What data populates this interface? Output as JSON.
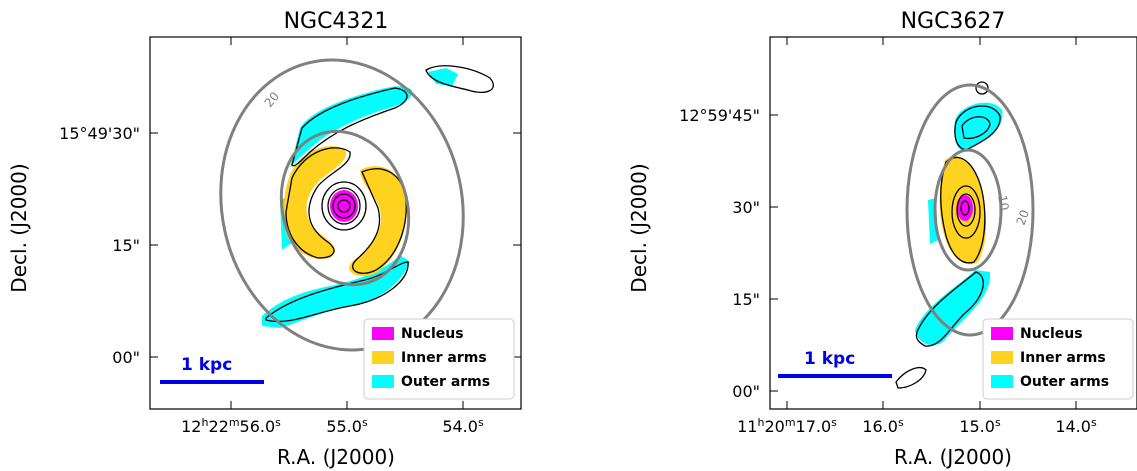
{
  "colors": {
    "nucleus": "#ff00ff",
    "inner_arms": "#ffd21f",
    "outer_arms": "#00ffff",
    "ellipse": "#808080",
    "scalebar": "#0000e6"
  },
  "panels": [
    {
      "title": "NGC4321",
      "xlabel": "R.A. (J2000)",
      "ylabel": "Decl. (J2000)",
      "yticks": [
        "15°49'30\"",
        "15\"",
        "00\""
      ],
      "xticks": [
        {
          "main": "12",
          "u1": "h",
          "m": "22",
          "u2": "m",
          "s": "56.0",
          "u3": "s"
        },
        {
          "s": "55.0",
          "u3": "s"
        },
        {
          "s": "54.0",
          "u3": "s"
        }
      ],
      "contour_label": "20",
      "scalebar": "1 kpc",
      "legend": [
        "Nucleus",
        "Inner arms",
        "Outer arms"
      ]
    },
    {
      "title": "NGC3627",
      "xlabel": "R.A. (J2000)",
      "ylabel": "Decl. (J2000)",
      "yticks": [
        "12°59'45\"",
        "30\"",
        "15\"",
        "00\""
      ],
      "xticks": [
        {
          "main": "11",
          "u1": "h",
          "m": "20",
          "u2": "m",
          "s": "17.0",
          "u3": "s"
        },
        {
          "s": "16.0",
          "u3": "s"
        },
        {
          "s": "15.0",
          "u3": "s"
        },
        {
          "s": "14.0",
          "u3": "s"
        }
      ],
      "contour_labels": [
        "10",
        "20"
      ],
      "scalebar": "1 kpc",
      "legend": [
        "Nucleus",
        "Inner arms",
        "Outer arms"
      ]
    }
  ]
}
